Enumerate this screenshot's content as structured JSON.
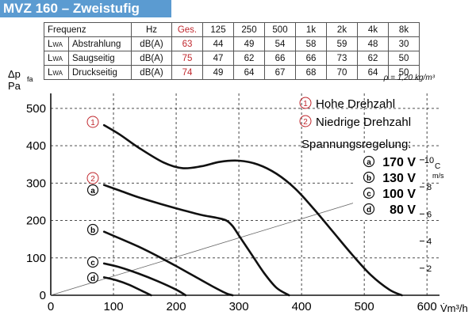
{
  "header": {
    "title": "MVZ 160 – Zweistufig"
  },
  "spec_table": {
    "head": [
      "Frequenz",
      "Hz",
      "Ges.",
      "125",
      "250",
      "500",
      "1k",
      "2k",
      "4k",
      "8k"
    ],
    "lwa_main": "L",
    "lwa_sub": "WA",
    "rows": [
      {
        "name": "Abstrahlung",
        "unit": "dB(A)",
        "total": "63",
        "values": [
          "44",
          "49",
          "54",
          "58",
          "59",
          "48",
          "30"
        ]
      },
      {
        "name": "Saugseitig",
        "unit": "dB(A)",
        "total": "75",
        "values": [
          "47",
          "62",
          "66",
          "66",
          "73",
          "62",
          "50"
        ]
      },
      {
        "name": "Druckseitig",
        "unit": "dB(A)",
        "total": "74",
        "values": [
          "49",
          "64",
          "67",
          "68",
          "70",
          "64",
          "50"
        ]
      }
    ]
  },
  "density_note": "ρ = 1,20 kg/m³",
  "colors": {
    "title_bar": "#5b9bd1",
    "accent_red": "#c0272d",
    "curve": "#111111"
  },
  "chart_data": {
    "type": "line",
    "x_ticks": [
      "0",
      "100",
      "200",
      "300",
      "400",
      "500",
      "600"
    ],
    "y_ticks": [
      "0",
      "100",
      "200",
      "300",
      "400",
      "500"
    ],
    "y2_ticks": [
      "2",
      "4",
      "6",
      "8",
      "10"
    ],
    "xlim": [
      0,
      620
    ],
    "ylim": [
      0,
      540
    ],
    "y2lim": [
      0,
      14.9
    ],
    "xlabel": "V̇m³/h",
    "ylabel_main": "Δp",
    "ylabel_sub": "fa",
    "ylabel_unit": "Pa",
    "y2label_top": "C",
    "y2label_unit": "m/s",
    "grid": true,
    "legend": {
      "high": {
        "symbol": "1",
        "label": "Hohe Drehzahl"
      },
      "low": {
        "symbol": "2",
        "label": "Niedrige Drehzahl"
      },
      "regulation_title": "Spannungsregelung:",
      "voltages": [
        {
          "key": "a",
          "label": "170 V"
        },
        {
          "key": "b",
          "label": "130 V"
        },
        {
          "key": "c",
          "label": "100 V"
        },
        {
          "key": "d",
          "label": "80 V"
        }
      ]
    },
    "velocity_line": {
      "x": [
        0,
        560
      ],
      "y": [
        0,
        7.9
      ]
    },
    "series": [
      {
        "key": "1",
        "color": "red",
        "x": [
          85,
          110,
          140,
          180,
          210,
          240,
          270,
          300,
          330,
          360,
          390,
          420,
          450,
          480,
          510,
          540,
          560
        ],
        "y": [
          455,
          430,
          395,
          355,
          340,
          345,
          357,
          360,
          350,
          325,
          285,
          230,
          170,
          110,
          55,
          15,
          0
        ]
      },
      {
        "key": "a",
        "color": "black",
        "x": [
          85,
          110,
          140,
          180,
          210,
          240,
          265,
          280,
          290,
          300,
          320,
          340,
          360,
          380
        ],
        "y": [
          295,
          280,
          262,
          242,
          228,
          215,
          207,
          200,
          185,
          160,
          110,
          60,
          20,
          0
        ]
      },
      {
        "key": "b",
        "color": "black",
        "x": [
          85,
          110,
          140,
          170,
          200,
          230,
          260,
          280,
          290
        ],
        "y": [
          170,
          152,
          130,
          105,
          78,
          50,
          22,
          5,
          0
        ]
      },
      {
        "key": "c",
        "color": "black",
        "x": [
          85,
          110,
          140,
          170,
          200,
          215
        ],
        "y": [
          85,
          75,
          58,
          38,
          15,
          0
        ]
      },
      {
        "key": "d",
        "color": "black",
        "x": [
          85,
          105,
          125,
          145,
          160
        ],
        "y": [
          48,
          40,
          28,
          12,
          0
        ]
      }
    ]
  }
}
